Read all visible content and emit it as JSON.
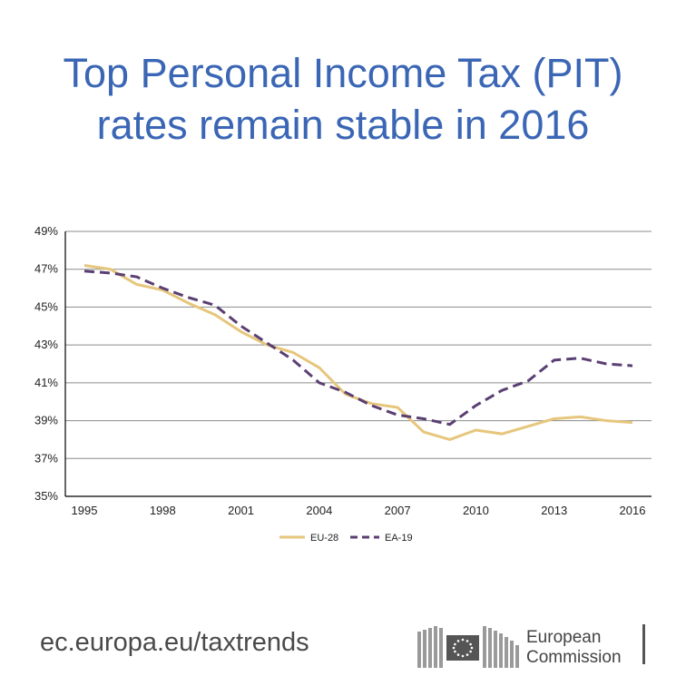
{
  "title": {
    "line1": "Top Personal Income Tax (PIT)",
    "line2": "rates remain stable in 2016"
  },
  "colors": {
    "title": "#3a66b5",
    "eu28": "#e6c67c",
    "ea19": "#5a3f73",
    "grid": "#8c8c8c"
  },
  "chart_data": {
    "type": "line",
    "title": "Top Personal Income Tax (PIT) rates remain stable in 2016",
    "xlabel": "",
    "ylabel": "",
    "x": [
      1995,
      1996,
      1997,
      1998,
      1999,
      2000,
      2001,
      2002,
      2003,
      2004,
      2005,
      2006,
      2007,
      2008,
      2009,
      2010,
      2011,
      2012,
      2013,
      2014,
      2015,
      2016
    ],
    "ylim": [
      35,
      49
    ],
    "yticks": [
      35,
      37,
      39,
      41,
      43,
      45,
      47,
      49
    ],
    "ytick_labels": [
      "35%",
      "37%",
      "39%",
      "41%",
      "43%",
      "45%",
      "47%",
      "49%"
    ],
    "xticks": [
      1995,
      1998,
      2001,
      2004,
      2007,
      2010,
      2013,
      2016
    ],
    "xtick_labels": [
      "1995",
      "1998",
      "2001",
      "2004",
      "2007",
      "2010",
      "2013",
      "2016"
    ],
    "grid": true,
    "legend_position": "bottom",
    "series": [
      {
        "name": "EU-28",
        "style": "solid",
        "values": [
          47.2,
          47.0,
          46.2,
          45.9,
          45.2,
          44.6,
          43.7,
          43.0,
          42.6,
          41.8,
          40.4,
          39.9,
          39.7,
          38.4,
          38.0,
          38.5,
          38.3,
          38.7,
          39.1,
          39.2,
          39.0,
          38.9
        ]
      },
      {
        "name": "EA-19",
        "style": "dashed",
        "values": [
          46.9,
          46.8,
          46.6,
          46.0,
          45.5,
          45.1,
          44.0,
          43.1,
          42.2,
          41.0,
          40.5,
          39.8,
          39.3,
          39.1,
          38.8,
          39.8,
          40.6,
          41.1,
          42.2,
          42.3,
          42.0,
          41.9
        ]
      }
    ]
  },
  "footer": {
    "url": "ec.europa.eu/taxtrends",
    "org_line1": "European",
    "org_line2": "Commission"
  }
}
